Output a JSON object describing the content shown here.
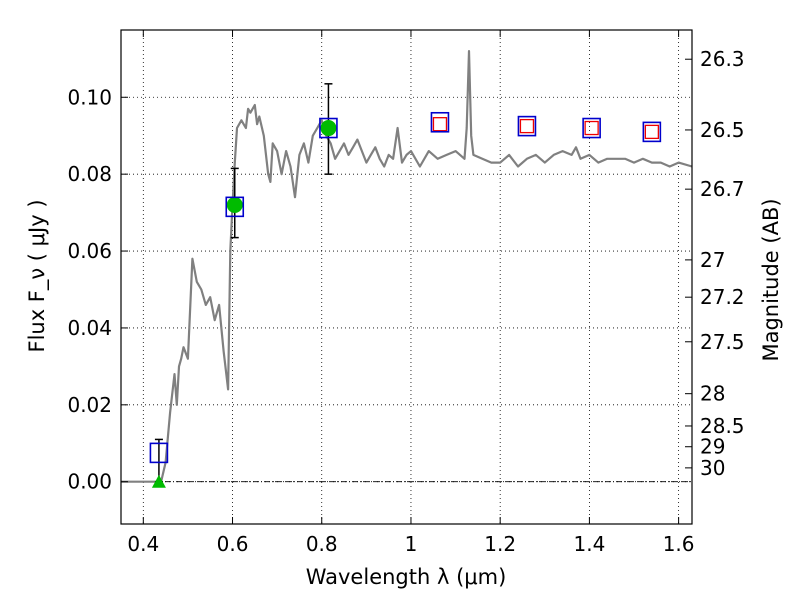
{
  "chart_data": {
    "type": "scatter",
    "title": "",
    "xlabel": "Wavelength  λ (μm)",
    "ylabel": "Flux  F_ν  ( μJy )",
    "ylabel_right": "Magnitude (AB)",
    "xlim": [
      0.35,
      1.63
    ],
    "ylim": [
      -0.011,
      0.1175
    ],
    "grid": true,
    "legend": "none",
    "x_ticks": [
      0.4,
      0.6,
      0.8,
      1.0,
      1.2,
      1.4,
      1.6
    ],
    "x_tick_labels": [
      "0.4",
      "0.6",
      "0.8",
      "1",
      "1.2",
      "1.4",
      "1.6"
    ],
    "y_ticks": [
      0.0,
      0.02,
      0.04,
      0.06,
      0.08,
      0.1
    ],
    "y_tick_labels": [
      "0.00",
      "0.02",
      "0.04",
      "0.06",
      "0.08",
      "0.10"
    ],
    "right_ticks": [
      {
        "label": "26.3",
        "flux": 0.1099
      },
      {
        "label": "26.5",
        "flux": 0.0915
      },
      {
        "label": "26.7",
        "flux": 0.0761
      },
      {
        "label": "27",
        "flux": 0.0577
      },
      {
        "label": "27.2",
        "flux": 0.048
      },
      {
        "label": "27.5",
        "flux": 0.0364
      },
      {
        "label": "28",
        "flux": 0.0229
      },
      {
        "label": "28.5",
        "flux": 0.0145
      },
      {
        "label": "29",
        "flux": 0.0091
      },
      {
        "label": "30",
        "flux": 0.0036
      }
    ],
    "zero_line": 0.0,
    "colors": {
      "spectrum": "#808080",
      "observed": "#00bb00",
      "model_box": "#0000cc",
      "prediction": "#ee0000",
      "errorbar": "#000000"
    },
    "series": [
      {
        "role": "model spectrum",
        "x": [
          0.35,
          0.4,
          0.43,
          0.44,
          0.45,
          0.46,
          0.47,
          0.475,
          0.48,
          0.485,
          0.49,
          0.5,
          0.51,
          0.52,
          0.53,
          0.54,
          0.55,
          0.56,
          0.57,
          0.58,
          0.59,
          0.595,
          0.6,
          0.605,
          0.61,
          0.62,
          0.63,
          0.635,
          0.64,
          0.65,
          0.655,
          0.66,
          0.67,
          0.68,
          0.685,
          0.69,
          0.7,
          0.71,
          0.72,
          0.73,
          0.74,
          0.75,
          0.76,
          0.77,
          0.78,
          0.79,
          0.8,
          0.81,
          0.82,
          0.83,
          0.84,
          0.85,
          0.86,
          0.87,
          0.88,
          0.89,
          0.9,
          0.91,
          0.92,
          0.93,
          0.94,
          0.95,
          0.96,
          0.97,
          0.98,
          0.99,
          1.0,
          1.02,
          1.04,
          1.06,
          1.08,
          1.1,
          1.12,
          1.125,
          1.13,
          1.135,
          1.14,
          1.16,
          1.18,
          1.2,
          1.22,
          1.24,
          1.26,
          1.28,
          1.3,
          1.32,
          1.34,
          1.36,
          1.37,
          1.38,
          1.4,
          1.42,
          1.44,
          1.46,
          1.48,
          1.5,
          1.52,
          1.54,
          1.56,
          1.58,
          1.6,
          1.63
        ],
        "y": [
          0.0,
          0.0,
          0.0,
          0.0,
          0.005,
          0.018,
          0.028,
          0.02,
          0.03,
          0.032,
          0.035,
          0.032,
          0.058,
          0.052,
          0.05,
          0.046,
          0.048,
          0.042,
          0.046,
          0.034,
          0.024,
          0.06,
          0.072,
          0.083,
          0.092,
          0.094,
          0.092,
          0.097,
          0.096,
          0.098,
          0.093,
          0.095,
          0.09,
          0.08,
          0.078,
          0.088,
          0.086,
          0.08,
          0.086,
          0.082,
          0.074,
          0.085,
          0.088,
          0.083,
          0.09,
          0.092,
          0.094,
          0.09,
          0.088,
          0.084,
          0.086,
          0.088,
          0.085,
          0.087,
          0.089,
          0.086,
          0.083,
          0.085,
          0.087,
          0.084,
          0.082,
          0.085,
          0.084,
          0.092,
          0.083,
          0.085,
          0.086,
          0.082,
          0.086,
          0.084,
          0.085,
          0.086,
          0.084,
          0.092,
          0.112,
          0.09,
          0.085,
          0.084,
          0.083,
          0.083,
          0.085,
          0.082,
          0.084,
          0.085,
          0.083,
          0.085,
          0.086,
          0.085,
          0.087,
          0.084,
          0.085,
          0.083,
          0.084,
          0.084,
          0.084,
          0.083,
          0.084,
          0.083,
          0.083,
          0.082,
          0.083,
          0.082
        ]
      },
      {
        "role": "model photometry (blue squares)",
        "x": [
          0.435,
          0.605,
          0.815,
          1.065,
          1.26,
          1.405,
          1.54
        ],
        "y": [
          0.0075,
          0.0715,
          0.092,
          0.0935,
          0.0925,
          0.092,
          0.091
        ]
      },
      {
        "role": "predicted photometry (red squares)",
        "x": [
          1.065,
          1.26,
          1.405,
          1.54
        ],
        "y": [
          0.093,
          0.0925,
          0.092,
          0.091
        ]
      },
      {
        "role": "observed detections (green circles)",
        "x": [
          0.605,
          0.815
        ],
        "y": [
          0.072,
          0.092
        ],
        "y_err_low": [
          0.0635,
          0.08
        ],
        "y_err_high": [
          0.0815,
          0.1035
        ]
      },
      {
        "role": "observed upper limit (green triangle)",
        "x": [
          0.435
        ],
        "y": [
          0.0
        ],
        "y_err_low": [
          0.0
        ],
        "y_err_high": [
          0.011
        ]
      }
    ]
  }
}
